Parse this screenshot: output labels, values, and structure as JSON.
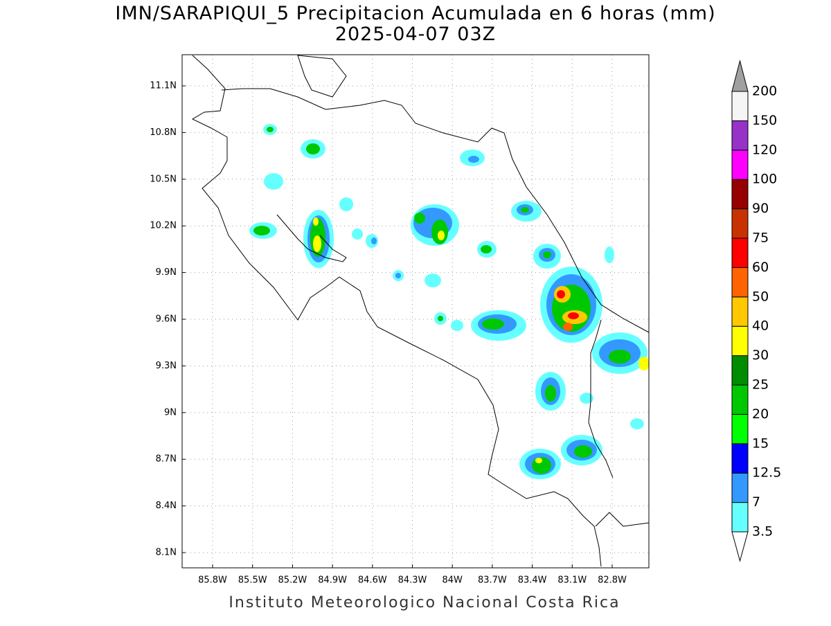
{
  "header": {
    "title": "IMN/SARAPIQUI_5 Precipitacion Acumulada en 6 horas (mm)",
    "subtitle": "2025-04-07 03Z"
  },
  "map": {
    "x_labels": [
      "85.8W",
      "85.5W",
      "85.2W",
      "84.9W",
      "84.6W",
      "84.3W",
      "84W",
      "83.7W",
      "83.4W",
      "83.1W",
      "82.8W"
    ],
    "y_labels": [
      "11.1N",
      "10.8N",
      "10.5N",
      "10.2N",
      "9.9N",
      "9.6N",
      "9.3N",
      "9N",
      "8.7N",
      "8.4N",
      "8.1N"
    ],
    "grid": true
  },
  "colorbar": {
    "levels": [
      3.5,
      7,
      12.5,
      15,
      20,
      25,
      30,
      40,
      50,
      60,
      75,
      90,
      100,
      120,
      150,
      200
    ],
    "colors": [
      "#66ffff",
      "#3399ff",
      "#0000ff",
      "#00ff00",
      "#00c800",
      "#008c00",
      "#ffff00",
      "#ffc800",
      "#ff6400",
      "#ff0000",
      "#c83200",
      "#960000",
      "#ff00ff",
      "#9632c8",
      "#f5f5f5"
    ],
    "under_color": "#ffffff",
    "over_color": "#a0a0a0"
  },
  "footer": "Instituto Meteorologico Nacional Costa Rica"
}
